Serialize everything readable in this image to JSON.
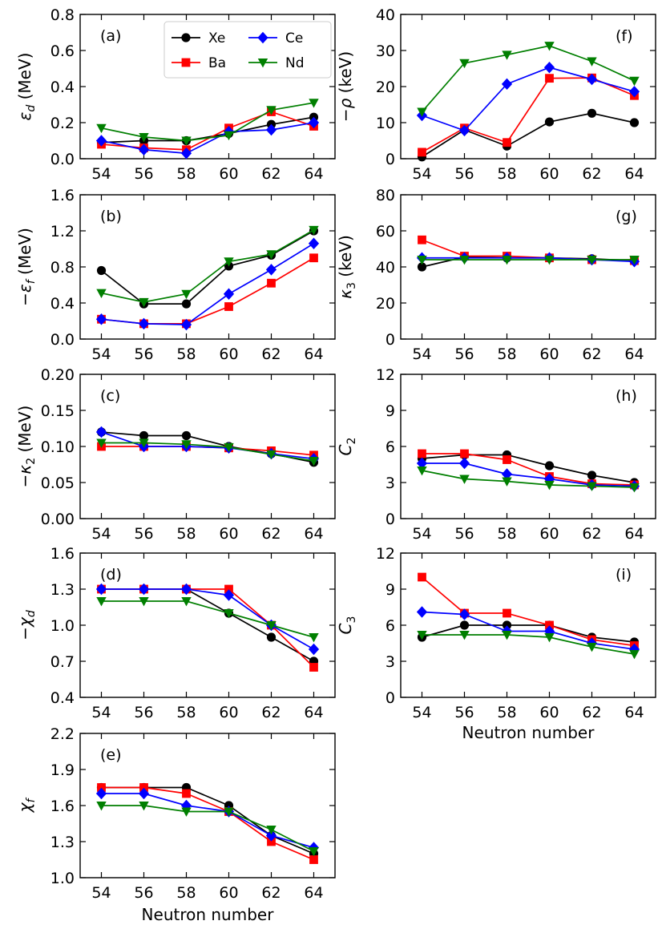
{
  "figure": {
    "xlabel": "Neutron number",
    "x": [
      54,
      56,
      58,
      60,
      62,
      64
    ],
    "legend": [
      {
        "name": "Xe",
        "color": "#000000",
        "marker": "circle"
      },
      {
        "name": "Ba",
        "color": "#ff0000",
        "marker": "square"
      },
      {
        "name": "Ce",
        "color": "#0000ff",
        "marker": "diamond"
      },
      {
        "name": "Nd",
        "color": "#007f00",
        "marker": "triangle-down"
      }
    ]
  },
  "chart_data": [
    {
      "type": "line",
      "tag": "(a)",
      "ylabel_sym": "ε",
      "ylabel_sub": "d",
      "ylabel_pre": "",
      "ylabel_unit": " (MeV)",
      "ylim": [
        0,
        0.8
      ],
      "yticks": [
        "0.0",
        "0.2",
        "0.4",
        "0.6",
        "0.8"
      ],
      "x": [
        54,
        56,
        58,
        60,
        62,
        64
      ],
      "series": [
        {
          "name": "Xe",
          "values": [
            0.09,
            0.1,
            0.1,
            0.14,
            0.19,
            0.23
          ]
        },
        {
          "name": "Ba",
          "values": [
            0.08,
            0.06,
            0.05,
            0.17,
            0.26,
            0.18
          ]
        },
        {
          "name": "Ce",
          "values": [
            0.1,
            0.05,
            0.03,
            0.15,
            0.16,
            0.2
          ]
        },
        {
          "name": "Nd",
          "values": [
            0.17,
            0.12,
            0.1,
            0.13,
            0.27,
            0.31
          ]
        }
      ]
    },
    {
      "type": "line",
      "tag": "(b)",
      "ylabel_sym": "ε",
      "ylabel_sub": "f",
      "ylabel_pre": "−",
      "ylabel_unit": " (MeV)",
      "ylim": [
        0,
        1.6
      ],
      "yticks": [
        "0.0",
        "0.4",
        "0.8",
        "1.2",
        "1.6"
      ],
      "x": [
        54,
        56,
        58,
        60,
        62,
        64
      ],
      "series": [
        {
          "name": "Xe",
          "values": [
            0.76,
            0.39,
            0.39,
            0.81,
            0.93,
            1.2
          ]
        },
        {
          "name": "Ba",
          "values": [
            0.22,
            0.17,
            0.17,
            0.36,
            0.62,
            0.9
          ]
        },
        {
          "name": "Ce",
          "values": [
            0.22,
            0.17,
            0.16,
            0.5,
            0.77,
            1.06
          ]
        },
        {
          "name": "Nd",
          "values": [
            0.51,
            0.41,
            0.5,
            0.86,
            0.94,
            1.21
          ]
        }
      ]
    },
    {
      "type": "line",
      "tag": "(c)",
      "ylabel_sym": "κ",
      "ylabel_sub": "2",
      "ylabel_pre": "−",
      "ylabel_unit": " (MeV)",
      "ylim": [
        0,
        0.2
      ],
      "yticks": [
        "0.00",
        "0.05",
        "0.10",
        "0.15",
        "0.20"
      ],
      "x": [
        54,
        56,
        58,
        60,
        62,
        64
      ],
      "series": [
        {
          "name": "Xe",
          "values": [
            0.12,
            0.115,
            0.115,
            0.1,
            0.09,
            0.078
          ]
        },
        {
          "name": "Ba",
          "values": [
            0.1,
            0.1,
            0.1,
            0.098,
            0.094,
            0.088
          ]
        },
        {
          "name": "Ce",
          "values": [
            0.12,
            0.1,
            0.1,
            0.098,
            0.09,
            0.083
          ]
        },
        {
          "name": "Nd",
          "values": [
            0.105,
            0.105,
            0.103,
            0.099,
            0.089,
            0.08
          ]
        }
      ]
    },
    {
      "type": "line",
      "tag": "(d)",
      "ylabel_sym": "χ",
      "ylabel_sub": "d",
      "ylabel_pre": "−",
      "ylabel_unit": "",
      "ylim": [
        0.4,
        1.6
      ],
      "yticks": [
        "0.4",
        "0.7",
        "1.0",
        "1.3",
        "1.6"
      ],
      "x": [
        54,
        56,
        58,
        60,
        62,
        64
      ],
      "series": [
        {
          "name": "Xe",
          "values": [
            1.3,
            1.3,
            1.3,
            1.1,
            0.9,
            0.7
          ]
        },
        {
          "name": "Ba",
          "values": [
            1.3,
            1.3,
            1.3,
            1.3,
            1.0,
            0.65
          ]
        },
        {
          "name": "Ce",
          "values": [
            1.3,
            1.3,
            1.3,
            1.25,
            1.0,
            0.8
          ]
        },
        {
          "name": "Nd",
          "values": [
            1.2,
            1.2,
            1.2,
            1.1,
            1.0,
            0.9
          ]
        }
      ]
    },
    {
      "type": "line",
      "tag": "(e)",
      "ylabel_sym": "χ",
      "ylabel_sub": "f",
      "ylabel_pre": "",
      "ylabel_unit": "",
      "ylim": [
        1.0,
        2.2
      ],
      "yticks": [
        "1.0",
        "1.3",
        "1.6",
        "1.9",
        "2.2"
      ],
      "x": [
        54,
        56,
        58,
        60,
        62,
        64
      ],
      "series": [
        {
          "name": "Xe",
          "values": [
            1.75,
            1.75,
            1.75,
            1.6,
            1.35,
            1.2
          ]
        },
        {
          "name": "Ba",
          "values": [
            1.75,
            1.75,
            1.7,
            1.55,
            1.3,
            1.15
          ]
        },
        {
          "name": "Ce",
          "values": [
            1.7,
            1.7,
            1.6,
            1.55,
            1.35,
            1.25
          ]
        },
        {
          "name": "Nd",
          "values": [
            1.6,
            1.6,
            1.55,
            1.55,
            1.4,
            1.22
          ]
        }
      ]
    },
    {
      "type": "line",
      "tag": "(f)",
      "ylabel_sym": "ρ",
      "ylabel_sub": "",
      "ylabel_pre": "−",
      "ylabel_unit": " (keV)",
      "ylim": [
        0,
        40
      ],
      "yticks": [
        "0",
        "10",
        "20",
        "30",
        "40"
      ],
      "x": [
        54,
        56,
        58,
        60,
        62,
        64
      ],
      "series": [
        {
          "name": "Xe",
          "values": [
            0.5,
            8.0,
            3.5,
            10.2,
            12.6,
            10.0
          ]
        },
        {
          "name": "Ba",
          "values": [
            1.8,
            8.5,
            4.5,
            22.3,
            22.4,
            17.5
          ]
        },
        {
          "name": "Ce",
          "values": [
            12.0,
            7.8,
            20.7,
            25.3,
            22.0,
            18.6
          ]
        },
        {
          "name": "Nd",
          "values": [
            13.0,
            26.5,
            28.8,
            31.3,
            27.0,
            21.6
          ]
        }
      ]
    },
    {
      "type": "line",
      "tag": "(g)",
      "ylabel_sym": "κ",
      "ylabel_sub": "3",
      "ylabel_pre": "",
      "ylabel_unit": " (keV)",
      "ylim": [
        0,
        80
      ],
      "yticks": [
        "0",
        "20",
        "40",
        "60",
        "80"
      ],
      "x": [
        54,
        56,
        58,
        60,
        62,
        64
      ],
      "series": [
        {
          "name": "Xe",
          "values": [
            40.0,
            45.5,
            45.0,
            45.0,
            44.5,
            43.5
          ]
        },
        {
          "name": "Ba",
          "values": [
            55.0,
            46.0,
            46.0,
            45.0,
            44.0,
            43.5
          ]
        },
        {
          "name": "Ce",
          "values": [
            45.0,
            45.0,
            45.0,
            45.0,
            44.0,
            43.0
          ]
        },
        {
          "name": "Nd",
          "values": [
            44.0,
            44.0,
            44.0,
            44.0,
            44.0,
            44.0
          ]
        }
      ]
    },
    {
      "type": "line",
      "tag": "(h)",
      "ylabel_sym": "C",
      "ylabel_sub": "2",
      "ylabel_pre": "",
      "ylabel_unit": "",
      "ylim": [
        0,
        12
      ],
      "yticks": [
        "0",
        "3",
        "6",
        "9",
        "12"
      ],
      "x": [
        54,
        56,
        58,
        60,
        62,
        64
      ],
      "series": [
        {
          "name": "Xe",
          "values": [
            5.0,
            5.3,
            5.3,
            4.4,
            3.6,
            3.0
          ]
        },
        {
          "name": "Ba",
          "values": [
            5.4,
            5.4,
            4.9,
            3.5,
            2.9,
            2.8
          ]
        },
        {
          "name": "Ce",
          "values": [
            4.6,
            4.6,
            3.7,
            3.3,
            2.8,
            2.7
          ]
        },
        {
          "name": "Nd",
          "values": [
            4.0,
            3.3,
            3.1,
            2.8,
            2.7,
            2.6
          ]
        }
      ]
    },
    {
      "type": "line",
      "tag": "(i)",
      "ylabel_sym": "C",
      "ylabel_sub": "3",
      "ylabel_pre": "",
      "ylabel_unit": "",
      "ylim": [
        0,
        12
      ],
      "yticks": [
        "0",
        "3",
        "6",
        "9",
        "12"
      ],
      "x": [
        54,
        56,
        58,
        60,
        62,
        64
      ],
      "series": [
        {
          "name": "Xe",
          "values": [
            5.0,
            6.0,
            6.0,
            6.0,
            5.0,
            4.6
          ]
        },
        {
          "name": "Ba",
          "values": [
            10.0,
            7.0,
            7.0,
            6.0,
            4.8,
            4.3
          ]
        },
        {
          "name": "Ce",
          "values": [
            7.1,
            6.9,
            5.5,
            5.5,
            4.5,
            4.0
          ]
        },
        {
          "name": "Nd",
          "values": [
            5.2,
            5.2,
            5.2,
            5.0,
            4.2,
            3.6
          ]
        }
      ]
    }
  ]
}
